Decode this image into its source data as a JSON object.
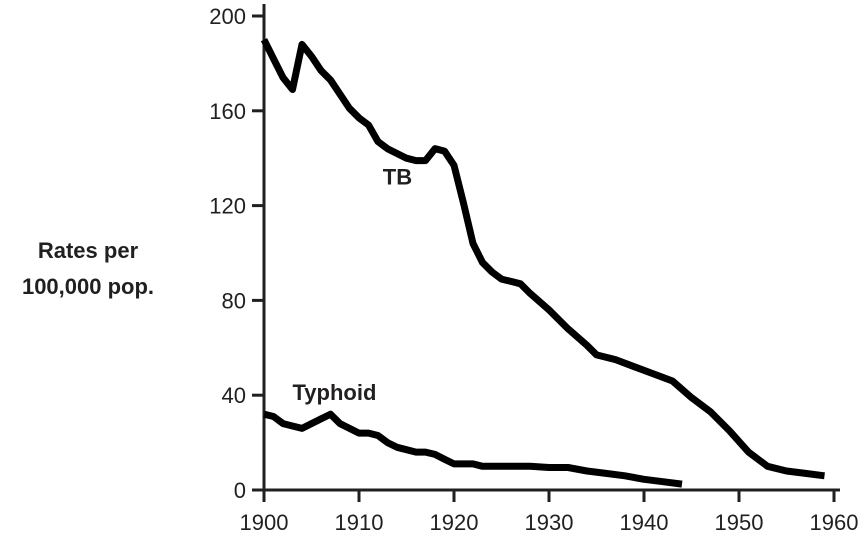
{
  "chart_data": {
    "type": "line",
    "title": "",
    "xlabel": "",
    "ylabel_lines": [
      "Rates per",
      "100,000 pop."
    ],
    "xlim": [
      1900,
      1960
    ],
    "ylim": [
      0,
      200
    ],
    "x_ticks": [
      1900,
      1910,
      1920,
      1930,
      1940,
      1950,
      1960
    ],
    "y_ticks": [
      0,
      40,
      80,
      120,
      160,
      200
    ],
    "grid": false,
    "legend": "none",
    "line_color": "#000000",
    "axis_color": "#221f1f",
    "series": [
      {
        "name": "TB",
        "label_at": [
          1912.5,
          129
        ],
        "points": [
          [
            1900,
            190
          ],
          [
            1901,
            182
          ],
          [
            1902,
            174
          ],
          [
            1903,
            169
          ],
          [
            1904,
            188
          ],
          [
            1905,
            183
          ],
          [
            1906,
            177
          ],
          [
            1907,
            173
          ],
          [
            1908,
            167
          ],
          [
            1909,
            161
          ],
          [
            1910,
            157
          ],
          [
            1911,
            154
          ],
          [
            1912,
            147
          ],
          [
            1913,
            144
          ],
          [
            1914,
            142
          ],
          [
            1915,
            140
          ],
          [
            1916,
            139
          ],
          [
            1917,
            139
          ],
          [
            1918,
            144
          ],
          [
            1919,
            143
          ],
          [
            1920,
            137
          ],
          [
            1921,
            121
          ],
          [
            1922,
            104
          ],
          [
            1923,
            96
          ],
          [
            1924,
            92
          ],
          [
            1925,
            89
          ],
          [
            1926,
            88
          ],
          [
            1927,
            87
          ],
          [
            1928,
            83
          ],
          [
            1930,
            76
          ],
          [
            1932,
            68
          ],
          [
            1934,
            61
          ],
          [
            1935,
            57
          ],
          [
            1937,
            55
          ],
          [
            1939,
            52
          ],
          [
            1941,
            49
          ],
          [
            1943,
            46
          ],
          [
            1945,
            39
          ],
          [
            1947,
            33
          ],
          [
            1949,
            25
          ],
          [
            1951,
            16
          ],
          [
            1953,
            10
          ],
          [
            1955,
            8
          ],
          [
            1957,
            7
          ],
          [
            1959,
            6
          ]
        ]
      },
      {
        "name": "Typhoid",
        "label_at": [
          1903,
          38
        ],
        "points": [
          [
            1900,
            32
          ],
          [
            1901,
            31
          ],
          [
            1902,
            28
          ],
          [
            1903,
            27
          ],
          [
            1904,
            26
          ],
          [
            1905,
            28
          ],
          [
            1906,
            30
          ],
          [
            1907,
            32
          ],
          [
            1908,
            28
          ],
          [
            1909,
            26
          ],
          [
            1910,
            24
          ],
          [
            1911,
            24
          ],
          [
            1912,
            23
          ],
          [
            1913,
            20
          ],
          [
            1914,
            18
          ],
          [
            1915,
            17
          ],
          [
            1916,
            16
          ],
          [
            1917,
            16
          ],
          [
            1918,
            15
          ],
          [
            1919,
            13
          ],
          [
            1920,
            11
          ],
          [
            1921,
            11
          ],
          [
            1922,
            11
          ],
          [
            1923,
            10
          ],
          [
            1924,
            10
          ],
          [
            1926,
            10
          ],
          [
            1928,
            10
          ],
          [
            1930,
            9.5
          ],
          [
            1932,
            9.5
          ],
          [
            1934,
            8
          ],
          [
            1936,
            7
          ],
          [
            1938,
            6
          ],
          [
            1940,
            4.5
          ],
          [
            1942,
            3.5
          ],
          [
            1944,
            2.5
          ]
        ]
      }
    ]
  }
}
